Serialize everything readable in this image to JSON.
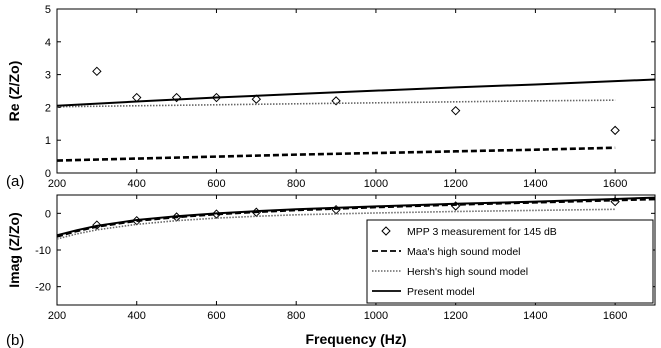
{
  "chart_data": [
    {
      "type": "line",
      "panel_label": "(a)",
      "ylabel": "Re (Z/Zo)",
      "xlabel": "",
      "xlim": [
        200,
        1700
      ],
      "ylim": [
        0,
        5
      ],
      "xticks": [
        200,
        400,
        600,
        800,
        1000,
        1200,
        1400,
        1600
      ],
      "yticks": [
        0,
        1,
        2,
        3,
        4,
        5
      ],
      "grid": false,
      "series": [
        {
          "name": "MPP 3 measurement for 145 dB",
          "style": "diamond-markers",
          "x": [
            300,
            400,
            500,
            600,
            700,
            900,
            1200,
            1600
          ],
          "y": [
            3.1,
            2.3,
            2.3,
            2.3,
            2.25,
            2.2,
            1.9,
            1.3
          ]
        },
        {
          "name": "Maa's high sound model",
          "style": "dashed",
          "x": [
            200,
            400,
            600,
            800,
            1000,
            1200,
            1400,
            1600
          ],
          "y": [
            0.38,
            0.44,
            0.5,
            0.56,
            0.61,
            0.66,
            0.71,
            0.77
          ]
        },
        {
          "name": "Hersh's high sound model",
          "style": "dotted",
          "x": [
            200,
            400,
            600,
            800,
            1000,
            1200,
            1400,
            1600
          ],
          "y": [
            2.02,
            2.05,
            2.08,
            2.11,
            2.14,
            2.17,
            2.2,
            2.22
          ]
        },
        {
          "name": "Present model",
          "style": "solid",
          "x": [
            200,
            400,
            600,
            800,
            1000,
            1200,
            1400,
            1600,
            1700
          ],
          "y": [
            2.05,
            2.18,
            2.3,
            2.41,
            2.51,
            2.61,
            2.7,
            2.8,
            2.85
          ]
        }
      ]
    },
    {
      "type": "line",
      "panel_label": "(b)",
      "ylabel": "Imag (Z/Zo)",
      "xlabel": "Frequency (Hz)",
      "xlim": [
        200,
        1700
      ],
      "ylim": [
        -25,
        5
      ],
      "xticks": [
        200,
        400,
        600,
        800,
        1000,
        1200,
        1400,
        1600
      ],
      "yticks": [
        -20,
        -10,
        0
      ],
      "grid": false,
      "legend": "bottom-right",
      "series": [
        {
          "name": "MPP 3 measurement for 145 dB",
          "style": "diamond-markers",
          "x": [
            300,
            400,
            500,
            600,
            700,
            900,
            1200,
            1600
          ],
          "y": [
            -3.2,
            -2.0,
            -1.0,
            -0.2,
            0.3,
            1.0,
            2.0,
            3.2
          ]
        },
        {
          "name": "Maa's high sound model",
          "style": "dashed",
          "x": [
            200,
            250,
            300,
            400,
            500,
            600,
            700,
            800,
            1000,
            1200,
            1400,
            1600,
            1700
          ],
          "y": [
            -6.3,
            -4.8,
            -3.6,
            -2.0,
            -1.0,
            -0.2,
            0.4,
            0.9,
            1.7,
            2.4,
            3.0,
            3.6,
            3.9
          ]
        },
        {
          "name": "Hersh's high sound model",
          "style": "dotted",
          "x": [
            200,
            250,
            300,
            400,
            500,
            600,
            700,
            800,
            1000,
            1200,
            1400,
            1600
          ],
          "y": [
            -7.0,
            -5.6,
            -4.5,
            -3.0,
            -2.0,
            -1.3,
            -0.8,
            -0.4,
            0.1,
            0.5,
            0.8,
            1.1
          ]
        },
        {
          "name": "Present model",
          "style": "solid",
          "x": [
            200,
            250,
            300,
            400,
            500,
            600,
            700,
            800,
            1000,
            1200,
            1400,
            1600,
            1700
          ],
          "y": [
            -6.0,
            -4.6,
            -3.4,
            -1.8,
            -0.8,
            0.0,
            0.6,
            1.1,
            1.9,
            2.6,
            3.2,
            3.9,
            4.3
          ]
        }
      ]
    }
  ]
}
